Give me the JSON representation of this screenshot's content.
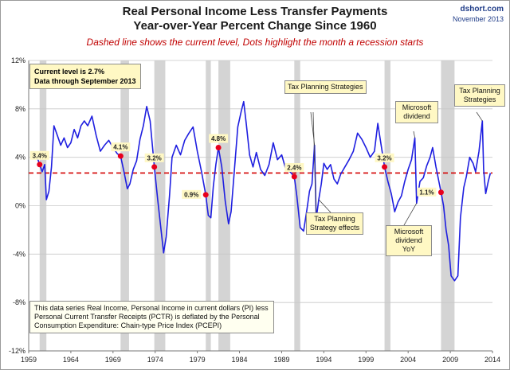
{
  "header": {
    "title_line1": "Real Personal Income Less Transfer Payments",
    "title_line2": "Year-over-Year Percent Change Since 1960",
    "subtitle": "Dashed line shows the current level, Dots highlight the month a recession starts",
    "source": "dshort.com",
    "date": "November 2013"
  },
  "current_box": {
    "line1": "Current level is 2.7%",
    "line2": "Data through September 2013"
  },
  "note": "This data series  Real Income, Personal Income in current dollars  (PI) less Personal Current Transfer Receipts (PCTR) is deflated by the Personal Consumption Expenditure: Chain-type Price Index (PCEPI)",
  "annotations": [
    {
      "text": "Tax Planning Strategies"
    },
    {
      "text": "Tax Planning Strategy effects"
    },
    {
      "text": "Microsoft dividend"
    },
    {
      "text": "Microsoft dividend YoY"
    },
    {
      "text": "Tax Planning Strategies"
    }
  ],
  "colors": {
    "line": "#1f1fe0",
    "dashed": "#d40000",
    "recession_band": "#d4d4d4",
    "dot": "#e8001c",
    "callout_fill": "#fff8c4"
  },
  "chart_data": {
    "type": "line",
    "ylim": [
      -12,
      12
    ],
    "xlim": [
      1959,
      2014
    ],
    "yticks": [
      -12,
      -8,
      -4,
      0,
      4,
      8,
      12
    ],
    "ytick_labels": [
      "-12%",
      "-8%",
      "-4%",
      "0%",
      "4%",
      "8%",
      "12%"
    ],
    "xticks": [
      1959,
      1964,
      1969,
      1974,
      1979,
      1984,
      1989,
      1994,
      1999,
      2004,
      2009,
      2014
    ],
    "current_level": 2.7,
    "recessions": [
      [
        1960.3,
        1961.1
      ],
      [
        1969.9,
        1970.9
      ],
      [
        1973.9,
        1975.2
      ],
      [
        1980.0,
        1980.6
      ],
      [
        1981.5,
        1982.9
      ],
      [
        1990.5,
        1991.2
      ],
      [
        2001.2,
        2001.9
      ],
      [
        2007.9,
        2009.5
      ]
    ],
    "recession_start_points": [
      {
        "x": 1960.3,
        "y": 3.4,
        "label": "3.4%"
      },
      {
        "x": 1969.9,
        "y": 4.1,
        "label": "4.1%"
      },
      {
        "x": 1973.9,
        "y": 3.2,
        "label": "3.2%"
      },
      {
        "x": 1980.0,
        "y": 0.9,
        "label": "0.9%"
      },
      {
        "x": 1981.5,
        "y": 4.8,
        "label": "4.8%"
      },
      {
        "x": 1990.5,
        "y": 2.4,
        "label": "2.4%"
      },
      {
        "x": 2001.2,
        "y": 3.2,
        "label": "3.2%"
      },
      {
        "x": 2007.9,
        "y": 1.1,
        "label": "1.1%"
      }
    ],
    "series": [
      {
        "values": [
          [
            1960.0,
            4.0
          ],
          [
            1960.3,
            3.4
          ],
          [
            1960.6,
            2.8
          ],
          [
            1960.9,
            3.4
          ],
          [
            1961.1,
            0.5
          ],
          [
            1961.4,
            1.2
          ],
          [
            1961.7,
            3.2
          ],
          [
            1962.0,
            6.6
          ],
          [
            1962.4,
            5.8
          ],
          [
            1962.8,
            5.0
          ],
          [
            1963.2,
            5.6
          ],
          [
            1963.6,
            4.8
          ],
          [
            1964.0,
            5.2
          ],
          [
            1964.4,
            6.3
          ],
          [
            1964.8,
            5.6
          ],
          [
            1965.2,
            6.6
          ],
          [
            1965.6,
            7.0
          ],
          [
            1966.0,
            6.6
          ],
          [
            1966.5,
            7.4
          ],
          [
            1967.0,
            5.8
          ],
          [
            1967.5,
            4.5
          ],
          [
            1968.0,
            5.0
          ],
          [
            1968.5,
            5.4
          ],
          [
            1969.0,
            4.8
          ],
          [
            1969.5,
            4.3
          ],
          [
            1969.9,
            4.1
          ],
          [
            1970.3,
            2.8
          ],
          [
            1970.7,
            1.4
          ],
          [
            1971.0,
            1.8
          ],
          [
            1971.4,
            3.0
          ],
          [
            1971.8,
            3.7
          ],
          [
            1972.2,
            5.5
          ],
          [
            1972.6,
            6.6
          ],
          [
            1973.0,
            8.2
          ],
          [
            1973.4,
            7.0
          ],
          [
            1973.9,
            3.2
          ],
          [
            1974.3,
            0.5
          ],
          [
            1974.7,
            -2.0
          ],
          [
            1975.0,
            -3.9
          ],
          [
            1975.3,
            -2.6
          ],
          [
            1975.7,
            0.8
          ],
          [
            1976.0,
            4.0
          ],
          [
            1976.5,
            5.0
          ],
          [
            1977.0,
            4.2
          ],
          [
            1977.5,
            5.4
          ],
          [
            1978.0,
            6.0
          ],
          [
            1978.5,
            6.5
          ],
          [
            1979.0,
            4.5
          ],
          [
            1979.5,
            2.8
          ],
          [
            1980.0,
            0.9
          ],
          [
            1980.3,
            -0.8
          ],
          [
            1980.6,
            -1.0
          ],
          [
            1980.9,
            1.6
          ],
          [
            1981.2,
            3.4
          ],
          [
            1981.5,
            4.8
          ],
          [
            1981.9,
            3.2
          ],
          [
            1982.3,
            0.4
          ],
          [
            1982.7,
            -1.5
          ],
          [
            1983.0,
            -0.5
          ],
          [
            1983.4,
            3.0
          ],
          [
            1983.8,
            6.5
          ],
          [
            1984.2,
            7.8
          ],
          [
            1984.5,
            8.6
          ],
          [
            1984.8,
            6.8
          ],
          [
            1985.2,
            4.2
          ],
          [
            1985.6,
            3.2
          ],
          [
            1986.0,
            4.4
          ],
          [
            1986.5,
            3.0
          ],
          [
            1987.0,
            2.5
          ],
          [
            1987.5,
            3.4
          ],
          [
            1988.0,
            5.2
          ],
          [
            1988.5,
            3.8
          ],
          [
            1989.0,
            4.2
          ],
          [
            1989.5,
            3.0
          ],
          [
            1990.0,
            2.8
          ],
          [
            1990.5,
            2.4
          ],
          [
            1990.8,
            0.8
          ],
          [
            1991.2,
            -1.8
          ],
          [
            1991.6,
            -2.1
          ],
          [
            1992.0,
            -0.3
          ],
          [
            1992.3,
            1.2
          ],
          [
            1992.6,
            1.8
          ],
          [
            1992.9,
            5.0
          ],
          [
            1993.1,
            -1.1
          ],
          [
            1993.4,
            0.5
          ],
          [
            1993.7,
            1.8
          ],
          [
            1994.0,
            3.5
          ],
          [
            1994.4,
            3.0
          ],
          [
            1994.8,
            3.4
          ],
          [
            1995.2,
            2.2
          ],
          [
            1995.6,
            1.8
          ],
          [
            1996.0,
            2.6
          ],
          [
            1996.5,
            3.2
          ],
          [
            1997.0,
            3.8
          ],
          [
            1997.5,
            4.5
          ],
          [
            1998.0,
            6.0
          ],
          [
            1998.5,
            5.5
          ],
          [
            1999.0,
            4.8
          ],
          [
            1999.5,
            4.0
          ],
          [
            2000.0,
            4.5
          ],
          [
            2000.4,
            6.8
          ],
          [
            2000.8,
            5.0
          ],
          [
            2001.2,
            3.2
          ],
          [
            2001.6,
            2.0
          ],
          [
            2002.0,
            1.0
          ],
          [
            2002.4,
            -0.5
          ],
          [
            2002.8,
            0.3
          ],
          [
            2003.2,
            0.8
          ],
          [
            2003.6,
            2.0
          ],
          [
            2004.0,
            3.0
          ],
          [
            2004.4,
            3.8
          ],
          [
            2004.8,
            5.6
          ],
          [
            2005.0,
            0.2
          ],
          [
            2005.4,
            2.0
          ],
          [
            2005.8,
            2.3
          ],
          [
            2006.2,
            3.3
          ],
          [
            2006.6,
            4.0
          ],
          [
            2006.9,
            4.8
          ],
          [
            2007.3,
            3.2
          ],
          [
            2007.9,
            1.1
          ],
          [
            2008.2,
            0.0
          ],
          [
            2008.5,
            -2.0
          ],
          [
            2008.8,
            -3.3
          ],
          [
            2009.1,
            -5.8
          ],
          [
            2009.5,
            -6.2
          ],
          [
            2009.9,
            -5.8
          ],
          [
            2010.2,
            -1.0
          ],
          [
            2010.6,
            1.5
          ],
          [
            2010.9,
            2.4
          ],
          [
            2011.3,
            4.0
          ],
          [
            2011.7,
            3.5
          ],
          [
            2012.0,
            2.8
          ],
          [
            2012.4,
            4.5
          ],
          [
            2012.8,
            7.0
          ],
          [
            2012.95,
            3.0
          ],
          [
            2013.2,
            1.0
          ],
          [
            2013.5,
            2.0
          ],
          [
            2013.75,
            2.7
          ]
        ]
      }
    ]
  }
}
